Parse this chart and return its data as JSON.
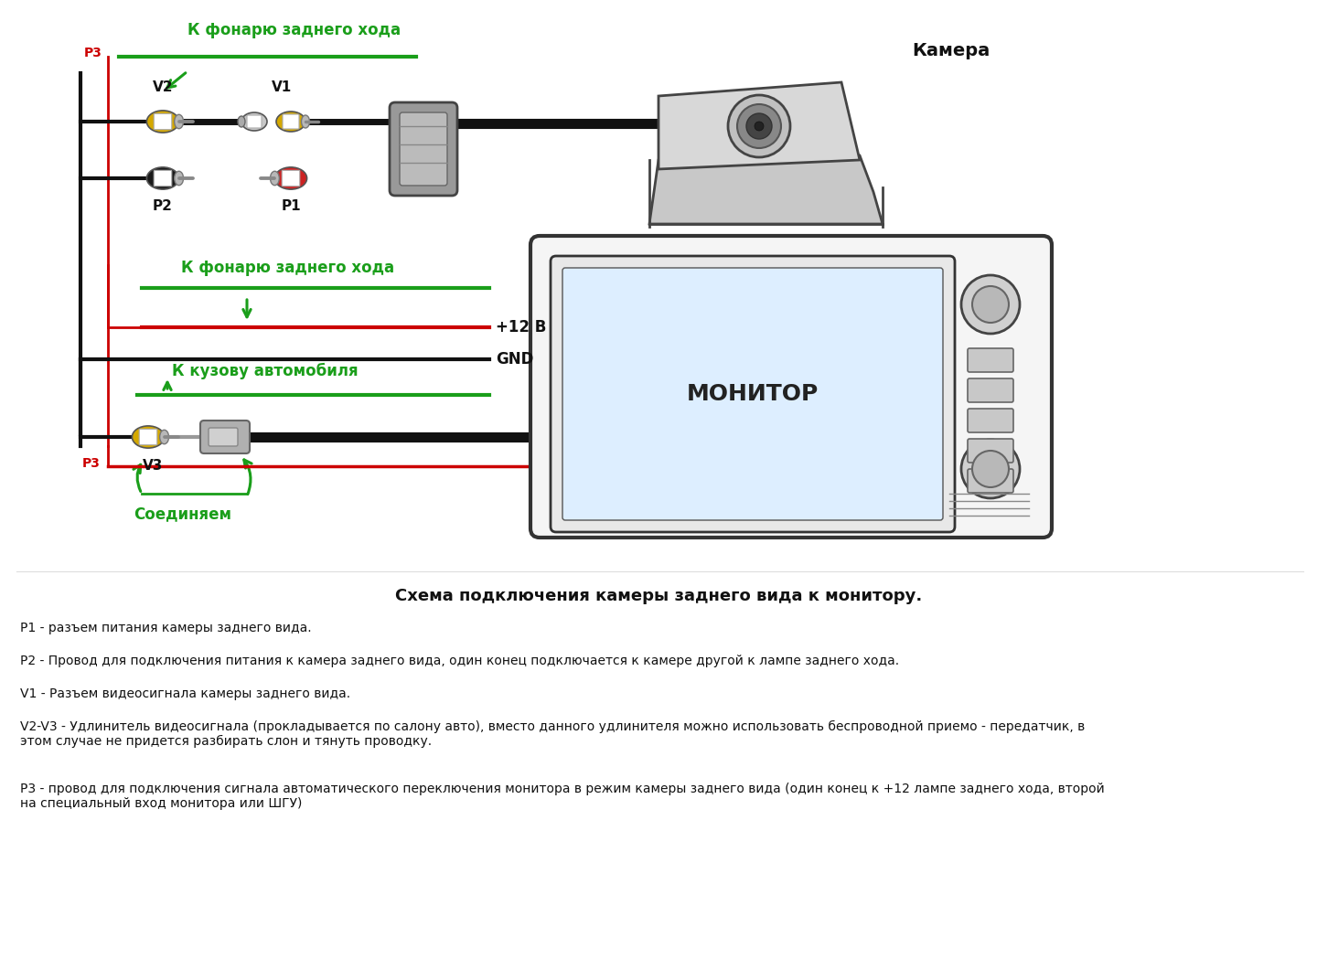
{
  "bg_color": "#ffffff",
  "diagram_title": "Схема подключения камеры заднего вида к монитору.",
  "legend_lines": [
    "P1 - разъем питания камеры заднего вида.",
    "P2 - Провод для подключения питания к камера заднего вида, один конец подключается к камере другой к лампе заднего хода.",
    "V1 - Разъем видеосигнала камеры заднего вида.",
    "V2-V3 - Удлинитель видеосигнала (прокладывается по салону авто), вместо данного удлинителя можно использовать беспроводной приемо - передатчик, в\nэтом случае не придется разбирать слон и тянуть проводку.",
    "Р3 - провод для подключения сигнала автоматического переключения монитора в режим камеры заднего вида (один конец к +12 лампе заднего хода, второй\nна специальный вход монитора или ШГУ)"
  ],
  "green_color": "#1a9e1a",
  "red_color": "#cc0000",
  "black_color": "#111111",
  "yellow_color": "#d4a800",
  "gray_color": "#888888",
  "light_gray": "#cccccc",
  "dark_gray": "#555555"
}
